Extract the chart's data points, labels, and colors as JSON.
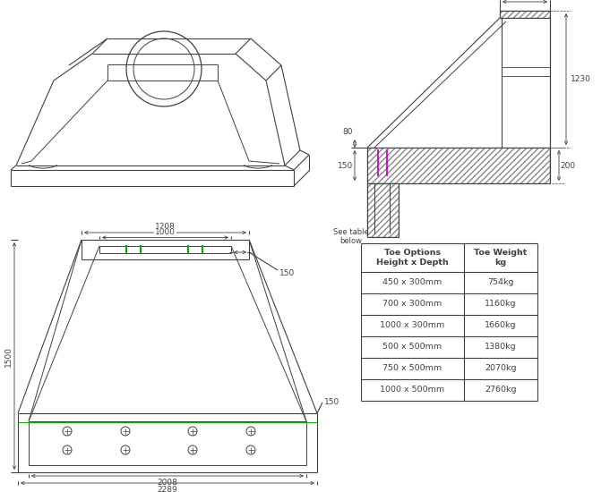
{
  "bg_color": "#ffffff",
  "line_color": "#404040",
  "green_color": "#00aa00",
  "magenta_color": "#cc00cc",
  "table_data": {
    "rows": [
      [
        "450 x 300mm",
        "754kg"
      ],
      [
        "700 x 300mm",
        "1160kg"
      ],
      [
        "1000 x 300mm",
        "1660kg"
      ],
      [
        "500 x 500mm",
        "1380kg"
      ],
      [
        "750 x 500mm",
        "2070kg"
      ],
      [
        "1000 x 500mm",
        "2760kg"
      ]
    ]
  }
}
